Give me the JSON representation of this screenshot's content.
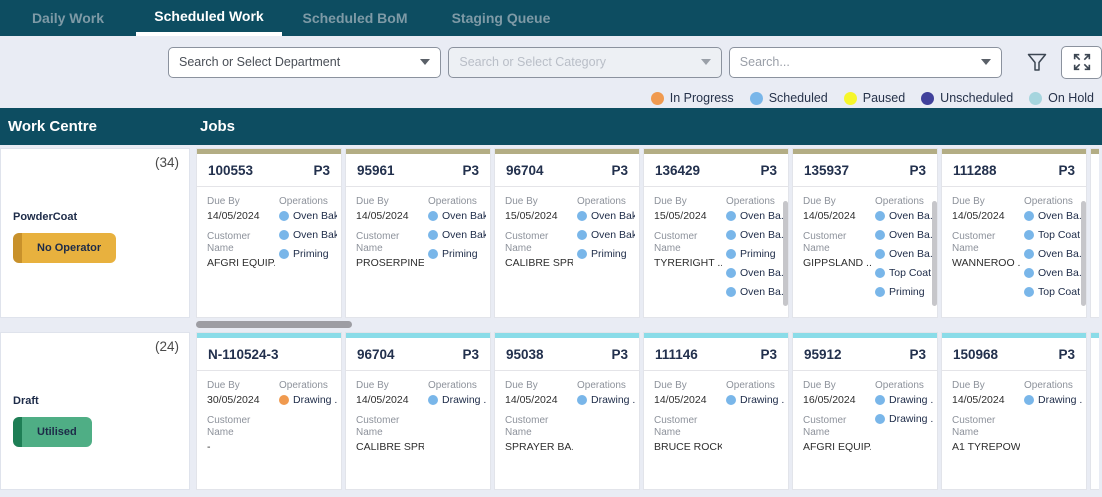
{
  "tabs": [
    {
      "label": "Daily Work",
      "active": false
    },
    {
      "label": "Scheduled Work",
      "active": true
    },
    {
      "label": "Scheduled BoM",
      "active": false
    },
    {
      "label": "Staging Queue",
      "active": false
    }
  ],
  "filters": {
    "department_placeholder": "Search or Select Department",
    "category_placeholder": "Search or Select Category",
    "search_placeholder": "Search...",
    "filter_icon": "filter-funnel-icon",
    "expand_icon": "fullscreen-expand-icon"
  },
  "legend": {
    "items": [
      {
        "label": "In Progress",
        "color": "#F09A4F"
      },
      {
        "label": "Scheduled",
        "color": "#79B6E9"
      },
      {
        "label": "Paused",
        "color": "#F6F62B"
      },
      {
        "label": "Unscheduled",
        "color": "#41419B"
      },
      {
        "label": "On Hold",
        "color": "#A6D5DE"
      }
    ]
  },
  "table": {
    "col1": "Work Centre",
    "col2": "Jobs"
  },
  "job_labels": {
    "due": "Due By",
    "customer": "Customer Name",
    "operations": "Operations"
  },
  "rows": [
    {
      "strip_color": "#B3AD84",
      "h_scrollbar": true,
      "work_centre": {
        "name": "PowderCoat",
        "count": "(34)",
        "badge": {
          "label": "No Operator",
          "bg": "#E8B13E",
          "stripe": "#C8912B"
        }
      },
      "jobs": [
        {
          "id": "100553",
          "priority": "P3",
          "due": "14/05/2024",
          "customer": "AFGRI EQUIP...",
          "scrollbar": false,
          "operations": [
            {
              "name": "Oven Bak...",
              "color": "#79B6E9"
            },
            {
              "name": "Oven Bak...",
              "color": "#79B6E9"
            },
            {
              "name": "Priming",
              "color": "#79B6E9"
            }
          ]
        },
        {
          "id": "95961",
          "priority": "P3",
          "due": "14/05/2024",
          "customer": "PROSERPINE...",
          "scrollbar": false,
          "operations": [
            {
              "name": "Oven Bak...",
              "color": "#79B6E9"
            },
            {
              "name": "Oven Bak...",
              "color": "#79B6E9"
            },
            {
              "name": "Priming",
              "color": "#79B6E9"
            }
          ]
        },
        {
          "id": "96704",
          "priority": "P3",
          "due": "15/05/2024",
          "customer": "CALIBRE SPR...",
          "scrollbar": false,
          "operations": [
            {
              "name": "Oven Bak...",
              "color": "#79B6E9"
            },
            {
              "name": "Oven Bak...",
              "color": "#79B6E9"
            },
            {
              "name": "Priming",
              "color": "#79B6E9"
            }
          ]
        },
        {
          "id": "136429",
          "priority": "P3",
          "due": "15/05/2024",
          "customer": "TYRERIGHT ...",
          "scrollbar": true,
          "operations": [
            {
              "name": "Oven Ba...",
              "color": "#79B6E9"
            },
            {
              "name": "Oven Ba...",
              "color": "#79B6E9"
            },
            {
              "name": "Priming",
              "color": "#79B6E9"
            },
            {
              "name": "Oven Ba...",
              "color": "#79B6E9"
            },
            {
              "name": "Oven Ba...",
              "color": "#79B6E9"
            }
          ]
        },
        {
          "id": "135937",
          "priority": "P3",
          "due": "14/05/2024",
          "customer": "GIPPSLAND ...",
          "scrollbar": true,
          "operations": [
            {
              "name": "Oven Ba...",
              "color": "#79B6E9"
            },
            {
              "name": "Oven Ba...",
              "color": "#79B6E9"
            },
            {
              "name": "Oven Ba...",
              "color": "#79B6E9"
            },
            {
              "name": "Top Coat",
              "color": "#79B6E9"
            },
            {
              "name": "Priming",
              "color": "#79B6E9"
            }
          ]
        },
        {
          "id": "111288",
          "priority": "P3",
          "due": "14/05/2024",
          "customer": "WANNEROO ...",
          "scrollbar": true,
          "operations": [
            {
              "name": "Oven Ba...",
              "color": "#79B6E9"
            },
            {
              "name": "Top Coat",
              "color": "#79B6E9"
            },
            {
              "name": "Oven Ba...",
              "color": "#79B6E9"
            },
            {
              "name": "Oven Ba...",
              "color": "#79B6E9"
            },
            {
              "name": "Top Coat",
              "color": "#79B6E9"
            }
          ]
        }
      ]
    },
    {
      "strip_color": "#8ADCE8",
      "h_scrollbar": false,
      "work_centre": {
        "name": "Draft",
        "count": "(24)",
        "badge": {
          "label": "Utilised",
          "bg": "#4FAE85",
          "stripe": "#1E7E55"
        }
      },
      "jobs": [
        {
          "id": "N-110524-3",
          "priority": "",
          "due": "30/05/2024",
          "customer": "-",
          "scrollbar": false,
          "operations": [
            {
              "name": "Drawing ...",
              "color": "#F09A4F"
            }
          ]
        },
        {
          "id": "96704",
          "priority": "P3",
          "due": "14/05/2024",
          "customer": "CALIBRE SPR...",
          "scrollbar": false,
          "operations": [
            {
              "name": "Drawing ...",
              "color": "#79B6E9"
            }
          ]
        },
        {
          "id": "95038",
          "priority": "P3",
          "due": "14/05/2024",
          "customer": "SPRAYER BA...",
          "scrollbar": false,
          "operations": [
            {
              "name": "Drawing ...",
              "color": "#79B6E9"
            }
          ]
        },
        {
          "id": "111146",
          "priority": "P3",
          "due": "14/05/2024",
          "customer": "BRUCE ROCK...",
          "scrollbar": false,
          "operations": [
            {
              "name": "Drawing ...",
              "color": "#79B6E9"
            }
          ]
        },
        {
          "id": "95912",
          "priority": "P3",
          "due": "16/05/2024",
          "customer": "AFGRI EQUIP...",
          "scrollbar": false,
          "operations": [
            {
              "name": "Drawing ...",
              "color": "#79B6E9"
            },
            {
              "name": "Drawing ...",
              "color": "#79B6E9"
            }
          ]
        },
        {
          "id": "150968",
          "priority": "P3",
          "due": "14/05/2024",
          "customer": "A1 TYREPOW...",
          "scrollbar": false,
          "operations": [
            {
              "name": "Drawing ...",
              "color": "#79B6E9"
            }
          ]
        }
      ]
    }
  ]
}
